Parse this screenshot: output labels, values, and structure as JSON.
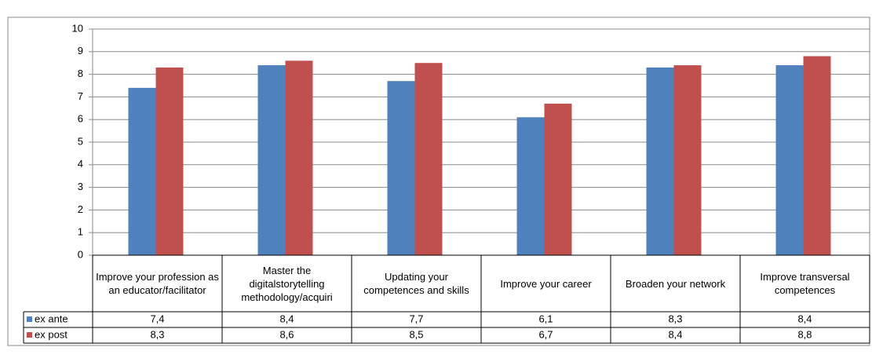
{
  "chart_data": {
    "type": "bar",
    "categories": [
      "Improve your profession as an educator/facilitator",
      "Master the digitalstorytelling methodology/acquiri",
      "Updating your competences and skills",
      "Improve your career",
      "Broaden your network",
      "Improve transversal competences"
    ],
    "series": [
      {
        "name": "ex ante",
        "color": "#4f81bd",
        "values": [
          7.4,
          8.4,
          7.7,
          6.1,
          8.3,
          8.4
        ],
        "value_labels": [
          "7,4",
          "8,4",
          "7,7",
          "6,1",
          "8,3",
          "8,4"
        ]
      },
      {
        "name": "ex post",
        "color": "#c0504d",
        "values": [
          8.3,
          8.6,
          8.5,
          6.7,
          8.4,
          8.8
        ],
        "value_labels": [
          "8,3",
          "8,6",
          "8,5",
          "6,7",
          "8,4",
          "8,8"
        ]
      }
    ],
    "ylim": [
      0,
      10
    ],
    "yticks": [
      0,
      1,
      2,
      3,
      4,
      5,
      6,
      7,
      8,
      9,
      10
    ],
    "grid": true
  }
}
